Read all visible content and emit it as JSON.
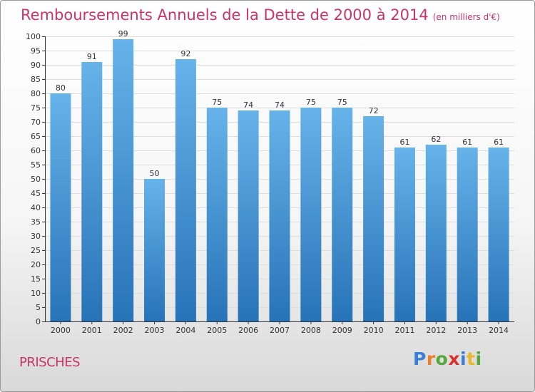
{
  "title": "Remboursements Annuels de la Dette de 2000 à 2014",
  "unit": "(en milliers d'€)",
  "commune": "PRISCHES",
  "logo": {
    "text": "Proxiti",
    "letters": [
      {
        "ch": "P",
        "color": "#3a7fd5"
      },
      {
        "ch": "r",
        "color": "#e8822a"
      },
      {
        "ch": "o",
        "color": "#57a83c"
      },
      {
        "ch": "x",
        "color": "#d9322c"
      },
      {
        "ch": "i",
        "color": "#3a7fd5"
      },
      {
        "ch": "t",
        "color": "#e8b82a"
      },
      {
        "ch": "i",
        "color": "#57a83c"
      }
    ]
  },
  "colors": {
    "title": "#cc3366",
    "bar_top": "#66b3ea",
    "bar_bottom": "#2773b8",
    "grid": "#dddddd",
    "axis": "#333333"
  },
  "chart_data": {
    "type": "bar",
    "categories": [
      "2000",
      "2001",
      "2002",
      "2003",
      "2004",
      "2005",
      "2006",
      "2007",
      "2008",
      "2009",
      "2010",
      "2011",
      "2012",
      "2013",
      "2014"
    ],
    "values": [
      80,
      91,
      99,
      50,
      92,
      75,
      74,
      74,
      75,
      75,
      72,
      61,
      62,
      61,
      61
    ],
    "ylim": [
      0,
      100
    ],
    "yticks": [
      0,
      5,
      10,
      15,
      20,
      25,
      30,
      35,
      40,
      45,
      50,
      55,
      60,
      65,
      70,
      75,
      80,
      85,
      90,
      95,
      100
    ],
    "grid": true,
    "legend": "none"
  }
}
